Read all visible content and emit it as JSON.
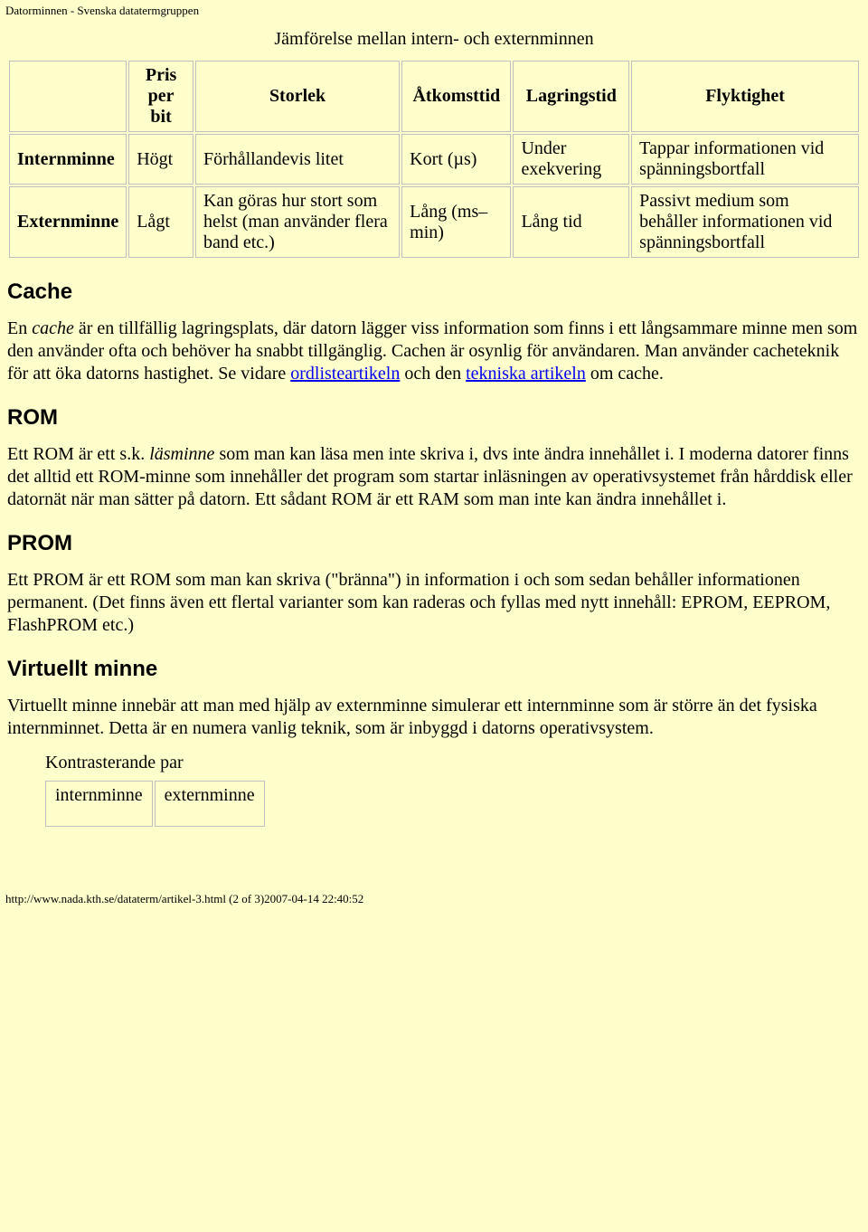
{
  "header_title": "Datorminnen - Svenska datatermgruppen",
  "table1": {
    "caption": "Jämförelse mellan intern- och externminnen",
    "headers": [
      "",
      "Pris per bit",
      "Storlek",
      "Åtkomsttid",
      "Lagringstid",
      "Flyktighet"
    ],
    "rows": [
      {
        "label": "Internminne",
        "pris": "Högt",
        "storlek": "Förhållandevis litet",
        "atkomst": "Kort (µs)",
        "lagring": "Under exekvering",
        "flykt": "Tappar informationen vid spänningsbortfall"
      },
      {
        "label": "Externminne",
        "pris": "Lågt",
        "storlek": "Kan göras hur stort som helst (man använder flera band etc.)",
        "atkomst": "Lång (ms–min)",
        "lagring": "Lång tid",
        "flykt": "Passivt medium som behåller informationen vid spänningsbortfall"
      }
    ]
  },
  "sections": {
    "cache": {
      "heading": "Cache",
      "p1_part1": "En ",
      "p1_em": "cache",
      "p1_part2": " är en tillfällig lagringsplats, där datorn lägger viss information som finns i ett långsammare minne men som den använder ofta och behöver ha snabbt tillgänglig. Cachen är osynlig för användaren. Man använder cacheteknik för att öka datorns hastighet. Se vidare ",
      "link1": "ordlisteartikeln",
      "p1_part3": " och den ",
      "link2": "tekniska artikeln",
      "p1_part4": " om cache."
    },
    "rom": {
      "heading": "ROM",
      "p1_part1": "Ett ROM är ett s.k. ",
      "p1_em": "läsminne",
      "p1_part2": " som man kan läsa men inte skriva i, dvs inte ändra innehållet i. I moderna datorer finns det alltid ett ROM-minne som innehåller det program som startar inläsningen av operativsystemet från hårddisk eller datornät när man sätter på datorn. Ett sådant ROM är ett RAM som man inte kan ändra innehållet i."
    },
    "prom": {
      "heading": "PROM",
      "p1": "Ett PROM är ett ROM som man kan skriva (\"bränna\") in information i och som sedan behåller informationen permanent. (Det finns även ett flertal varianter som kan raderas och fyllas med nytt innehåll: EPROM, EEPROM, FlashPROM etc.)"
    },
    "virt": {
      "heading": "Virtuellt minne",
      "p1": "Virtuellt minne innebär att man med hjälp av externminne simulerar ett internminne som är större än det fysiska internminnet. Detta är en numera vanlig teknik, som är inbyggd i datorns operativsystem."
    }
  },
  "table2": {
    "caption": "Kontrasterande par",
    "cells": [
      "internminne",
      "externminne"
    ]
  },
  "footer_url": "http://www.nada.kth.se/dataterm/artikel-3.html (2 of 3)2007-04-14 22:40:52"
}
